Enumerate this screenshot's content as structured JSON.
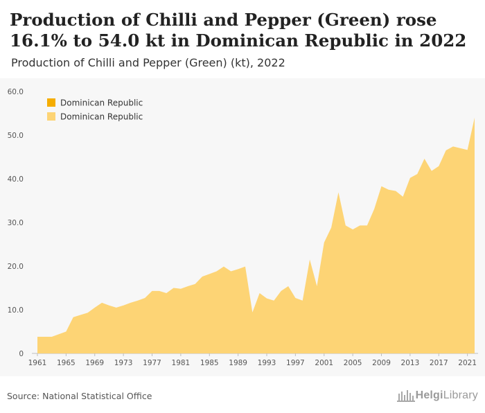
{
  "header": {
    "title": "Production of Chilli and Pepper (Green) rose 16.1% to 54.0 kt in Dominican Republic in 2022",
    "subtitle": "Production of Chilli and Pepper (Green) (kt), 2022"
  },
  "footer": {
    "source": "Source: National Statistical Office",
    "logo_text_bold": "Helgi",
    "logo_text_light": "Library"
  },
  "colors": {
    "area": "#fdd475",
    "legend_dark": "#f5ad00",
    "legend_light": "#fdd475",
    "plot_bg": "#f7f7f7"
  },
  "chart_data": {
    "type": "area",
    "series": [
      {
        "name": "Dominican Republic",
        "x": [
          1961,
          1962,
          1963,
          1964,
          1965,
          1966,
          1967,
          1968,
          1969,
          1970,
          1971,
          1972,
          1973,
          1974,
          1975,
          1976,
          1977,
          1978,
          1979,
          1980,
          1981,
          1982,
          1983,
          1984,
          1985,
          1986,
          1987,
          1988,
          1989,
          1990,
          1991,
          1992,
          1993,
          1994,
          1995,
          1996,
          1997,
          1998,
          1999,
          2000,
          2001,
          2002,
          2003,
          2004,
          2005,
          2006,
          2007,
          2008,
          2009,
          2010,
          2011,
          2012,
          2013,
          2014,
          2015,
          2016,
          2017,
          2018,
          2019,
          2020,
          2021,
          2022
        ],
        "values": [
          3.8,
          3.8,
          3.8,
          4.4,
          5.0,
          8.3,
          8.8,
          9.3,
          10.5,
          11.6,
          11.0,
          10.5,
          11.0,
          11.6,
          12.1,
          12.7,
          14.3,
          14.3,
          13.8,
          15.0,
          14.8,
          15.4,
          15.9,
          17.6,
          18.2,
          18.8,
          19.9,
          18.8,
          19.3,
          19.9,
          9.4,
          13.8,
          12.6,
          12.1,
          14.3,
          15.4,
          12.7,
          12.1,
          21.5,
          15.4,
          25.4,
          28.8,
          36.9,
          29.3,
          28.4,
          29.3,
          29.3,
          33.1,
          38.3,
          37.5,
          37.2,
          35.9,
          40.2,
          41.1,
          44.6,
          41.8,
          42.9,
          46.5,
          47.4,
          47.0,
          46.6,
          54.0
        ]
      }
    ],
    "legend": [
      "Dominican Republic",
      "Dominican Republic"
    ],
    "legend_placement": "top-left",
    "ylim": [
      0,
      60
    ],
    "yticks": [
      0,
      10,
      20,
      30,
      40,
      50,
      60
    ],
    "ytick_labels": [
      "0",
      "10.0",
      "20.0",
      "30.0",
      "40.0",
      "50.0",
      "60.0"
    ],
    "xticks": [
      1961,
      1965,
      1969,
      1973,
      1977,
      1981,
      1985,
      1989,
      1993,
      1997,
      2001,
      2005,
      2009,
      2013,
      2017,
      2021
    ],
    "xtick_labels": [
      "1961",
      "1965",
      "1969",
      "1973",
      "1977",
      "1981",
      "1985",
      "1989",
      "1993",
      "1997",
      "2001",
      "2005",
      "2009",
      "2013",
      "2017",
      "2021"
    ],
    "grid": false,
    "xlabel": "",
    "ylabel": ""
  }
}
